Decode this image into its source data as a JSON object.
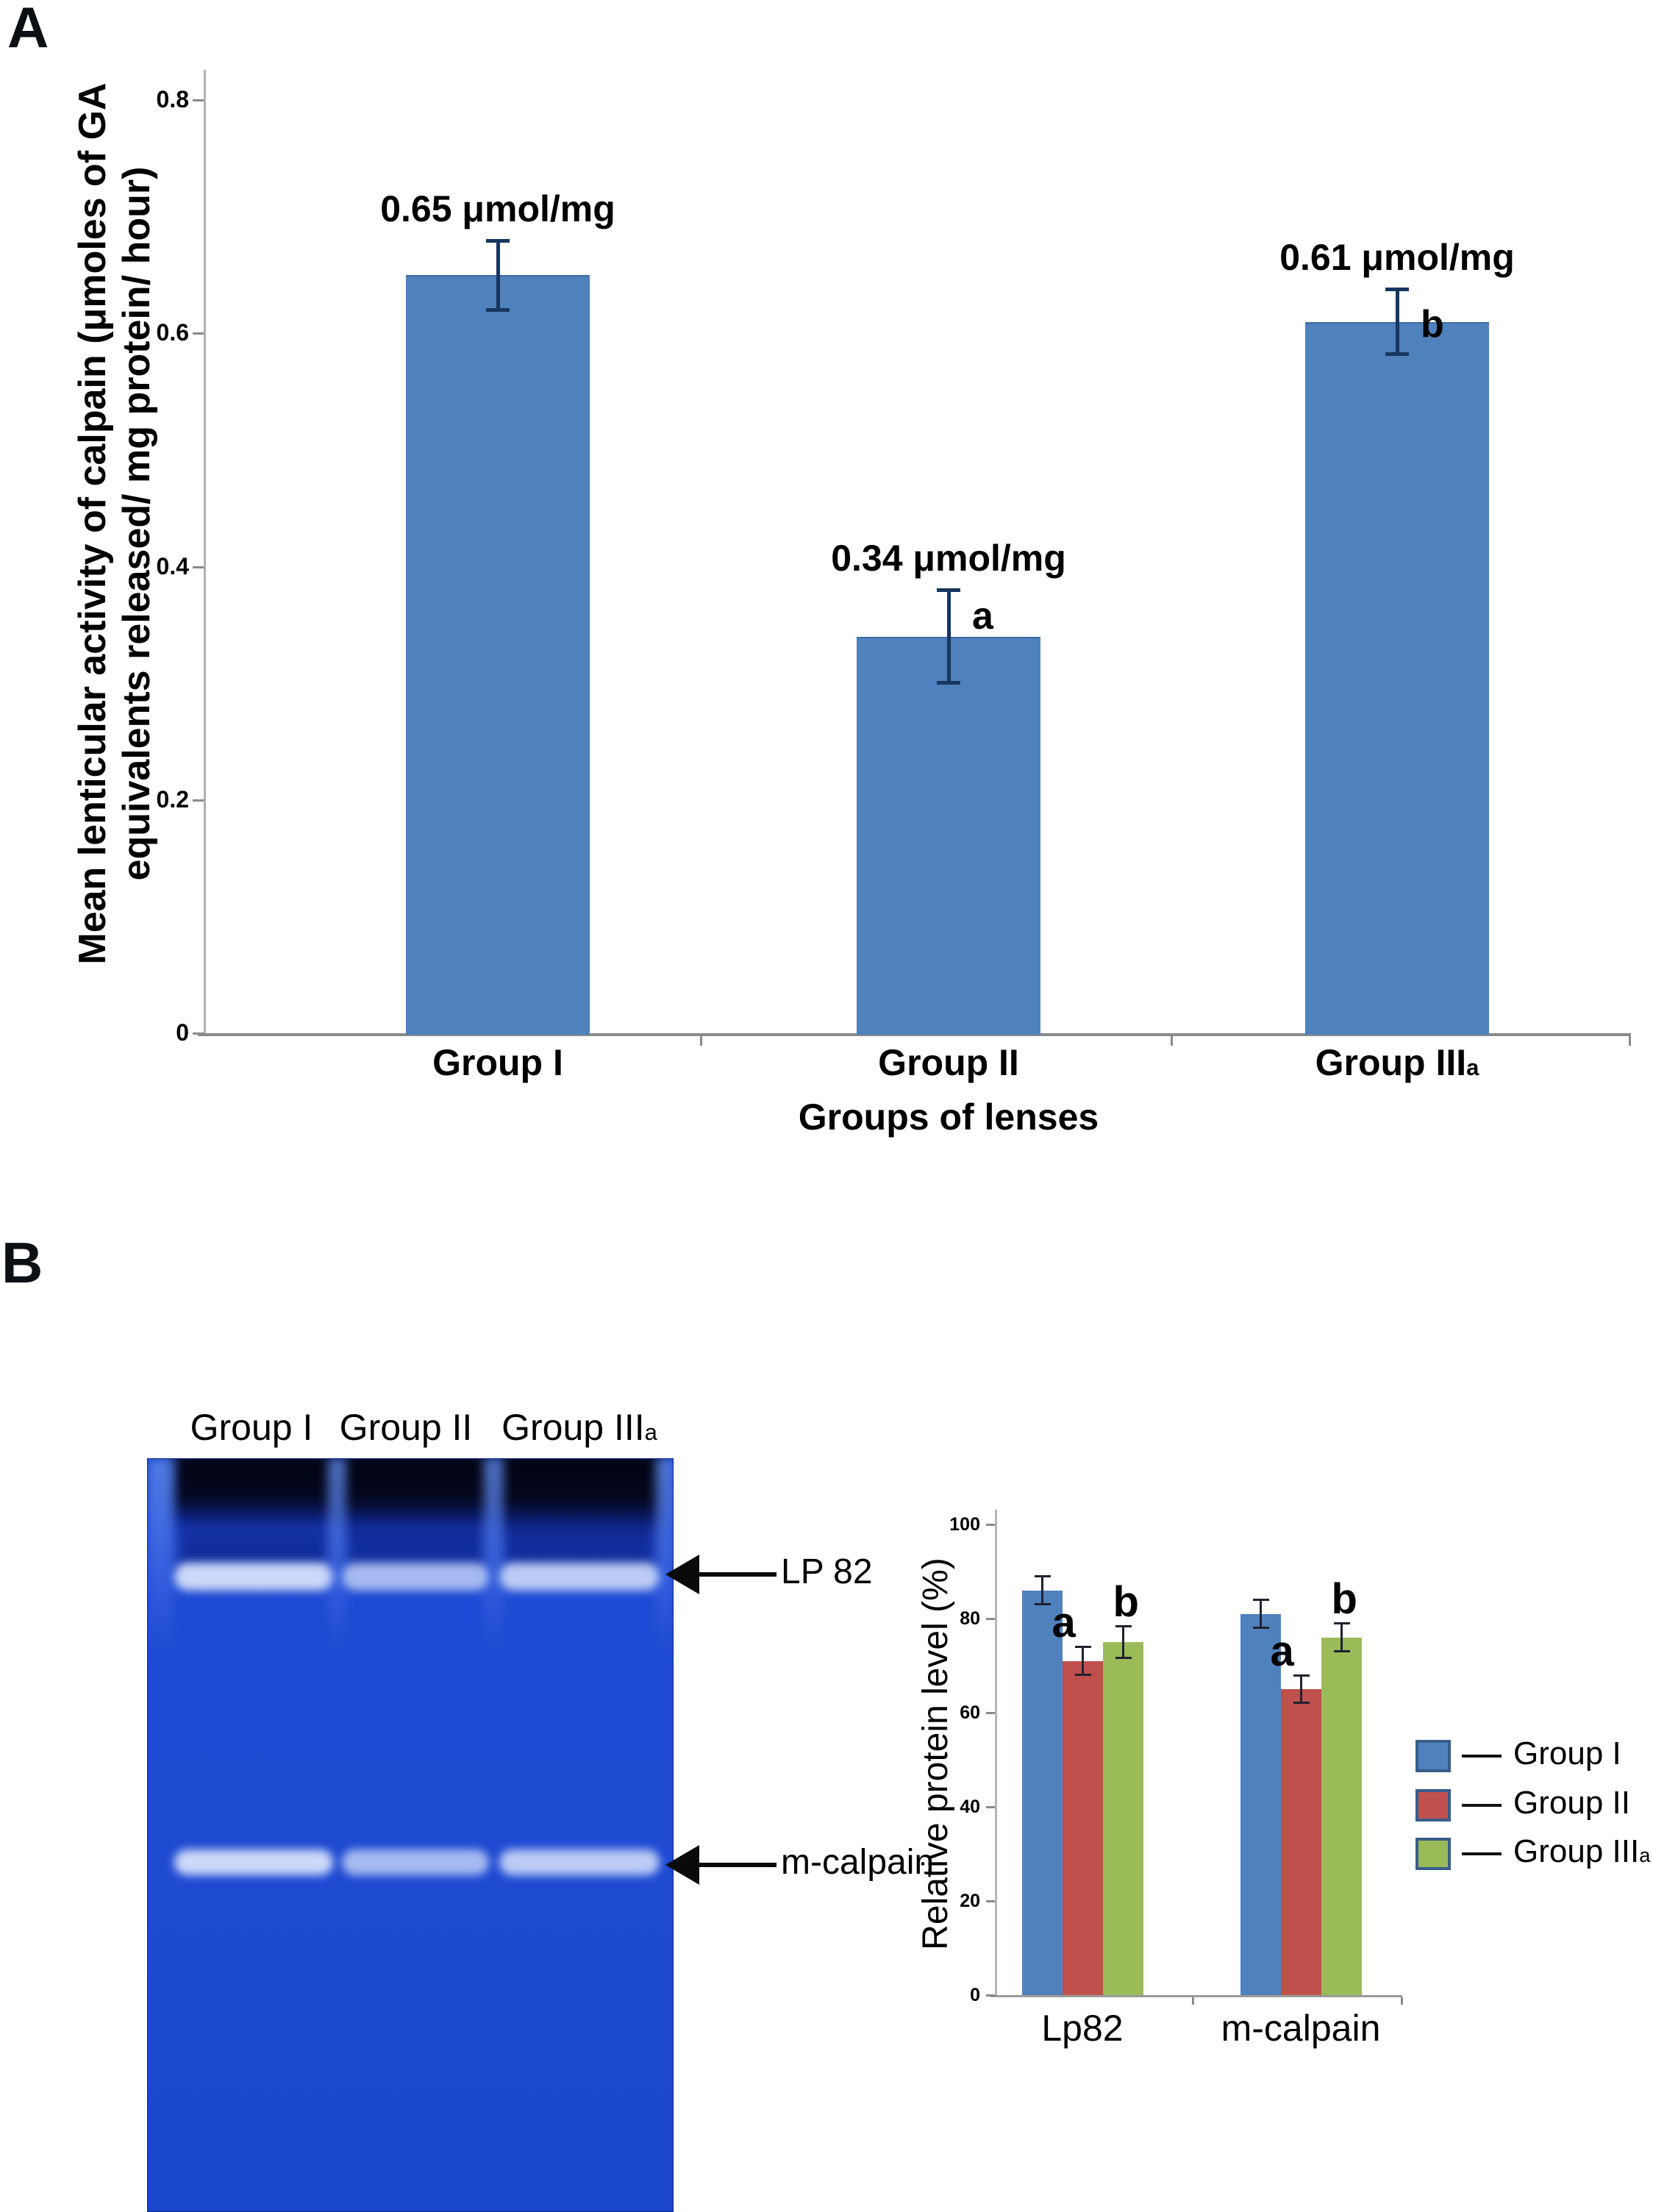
{
  "figure": {
    "panel_a_letter": "A",
    "panel_b_letter": "B",
    "panel_a": {
      "y_axis_title_line1": "Mean lenticular activity of calpain (μmoles of GA",
      "y_axis_title_line2": "equivalents released/ mg protein/ hour)",
      "x_axis_title": "Groups of lenses",
      "categories_rich": [
        {
          "text": "Group I",
          "sub": ""
        },
        {
          "text": "Group II",
          "sub": ""
        },
        {
          "text": "Group III",
          "sub": "a"
        }
      ]
    },
    "gel": {
      "lane_labels": [
        {
          "text": "Group I",
          "sub": ""
        },
        {
          "text": "Group II",
          "sub": ""
        },
        {
          "text": "Group III",
          "sub": "a"
        }
      ],
      "arrows": [
        {
          "label": "LP 82"
        },
        {
          "label": "m-calpain"
        }
      ]
    },
    "legend": [
      {
        "label": "Group I",
        "sub": "",
        "color": "#4f81bd"
      },
      {
        "label": "Group II",
        "sub": "",
        "color": "#c0504d"
      },
      {
        "label": "Group III",
        "sub": "a",
        "color": "#9bbb59"
      }
    ]
  },
  "chart_data": [
    {
      "id": "calpain_activity",
      "type": "bar",
      "title": "",
      "categories": [
        "Group I",
        "Group II",
        "Group IIIa"
      ],
      "values": [
        0.65,
        0.34,
        0.61
      ],
      "errors": [
        0.03,
        0.04,
        0.028
      ],
      "bar_labels": [
        "0.65 μmol/mg",
        "0.34 μmol/mg",
        "0.61 μmol/mg"
      ],
      "significance": [
        "",
        "a",
        "b"
      ],
      "xlabel": "Groups of lenses",
      "ylabel": "Mean lenticular activity of calpain (μmoles of GA equivalents released/ mg protein/ hour)",
      "ylim": [
        0,
        0.8
      ],
      "yticks": [
        0,
        0.2,
        0.4,
        0.6,
        0.8
      ],
      "ytick_labels": [
        "0",
        "0.2",
        "0.4",
        "0.6",
        "0.8"
      ],
      "grid": false,
      "legend": false,
      "bar_color": "#4f81bd",
      "error_color": "#17365e"
    },
    {
      "id": "relative_protein_level",
      "type": "bar",
      "title": "",
      "categories": [
        "Lp82",
        "m-calpain"
      ],
      "series": [
        {
          "name": "Group I",
          "color": "#4f81bd",
          "values": [
            86,
            81
          ],
          "errors": [
            3,
            3
          ],
          "significance": [
            "",
            ""
          ]
        },
        {
          "name": "Group II",
          "color": "#c0504d",
          "values": [
            71,
            65
          ],
          "errors": [
            3,
            3
          ],
          "significance": [
            "a",
            "a"
          ]
        },
        {
          "name": "Group IIIa",
          "color": "#9bbb59",
          "values": [
            75,
            76
          ],
          "errors": [
            3.5,
            3
          ],
          "significance": [
            "b",
            "b"
          ]
        }
      ],
      "xlabel": "",
      "ylabel": "Relative protein level (%)",
      "ylim": [
        0,
        100
      ],
      "yticks": [
        0,
        20,
        40,
        60,
        80,
        100
      ],
      "ytick_labels": [
        "0",
        "20",
        "40",
        "60",
        "80",
        "100"
      ],
      "grid": false,
      "legend_position": "right",
      "error_color": "#20222e"
    }
  ]
}
